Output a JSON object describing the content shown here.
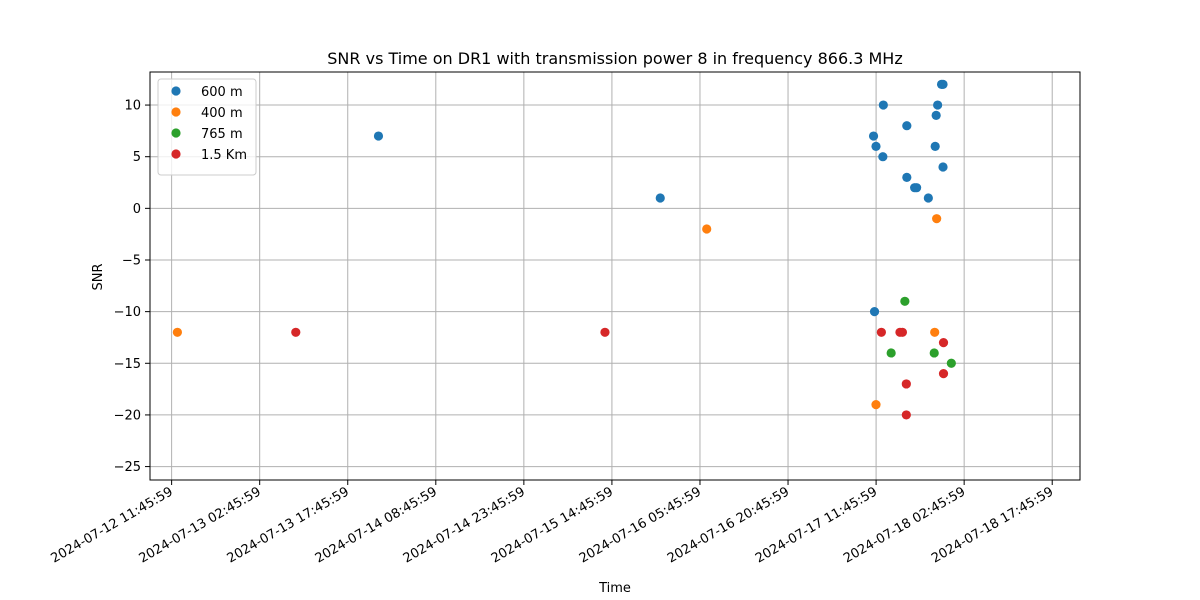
{
  "chart_data": {
    "type": "scatter",
    "title": "SNR vs Time on DR1 with transmission power 8 in frequency 866.3 MHz",
    "xlabel": "Time",
    "ylabel": "SNR",
    "x_ticks": [
      "2024-07-12 11:45:59",
      "2024-07-13 02:45:59",
      "2024-07-13 17:45:59",
      "2024-07-14 08:45:59",
      "2024-07-14 23:45:59",
      "2024-07-15 14:45:59",
      "2024-07-16 05:45:59",
      "2024-07-16 20:45:59",
      "2024-07-17 11:45:59",
      "2024-07-18 02:45:59",
      "2024-07-18 17:45:59"
    ],
    "xlim": [
      "2024-07-12 08:05:00",
      "2024-07-18 22:30:00"
    ],
    "y_ticks": [
      10,
      5,
      0,
      -5,
      -10,
      -15,
      -20,
      -25
    ],
    "ylim": [
      -26.3,
      13.2
    ],
    "grid": true,
    "legend_position": "upper-left",
    "series": [
      {
        "name": "600 m",
        "color": "#1f77b4",
        "points": [
          {
            "x": "2024-07-13 23:00:00",
            "y": 7
          },
          {
            "x": "2024-07-15 23:00:00",
            "y": 1
          },
          {
            "x": "2024-07-17 11:20:00",
            "y": 7
          },
          {
            "x": "2024-07-17 11:30:00",
            "y": -10
          },
          {
            "x": "2024-07-17 11:45:00",
            "y": 6
          },
          {
            "x": "2024-07-17 12:55:00",
            "y": 5
          },
          {
            "x": "2024-07-17 13:00:00",
            "y": 10
          },
          {
            "x": "2024-07-17 17:00:00",
            "y": 8
          },
          {
            "x": "2024-07-17 17:00:00",
            "y": 3
          },
          {
            "x": "2024-07-17 18:20:00",
            "y": 2
          },
          {
            "x": "2024-07-17 18:40:00",
            "y": 2
          },
          {
            "x": "2024-07-17 20:40:00",
            "y": 1
          },
          {
            "x": "2024-07-17 21:50:00",
            "y": 6
          },
          {
            "x": "2024-07-17 22:00:00",
            "y": 9
          },
          {
            "x": "2024-07-17 22:15:00",
            "y": 10
          },
          {
            "x": "2024-07-17 22:55:00",
            "y": 12
          },
          {
            "x": "2024-07-17 23:10:00",
            "y": 12
          },
          {
            "x": "2024-07-17 23:10:00",
            "y": 4
          }
        ]
      },
      {
        "name": "400 m",
        "color": "#ff7f0e",
        "points": [
          {
            "x": "2024-07-12 12:45:00",
            "y": -12
          },
          {
            "x": "2024-07-16 06:55:00",
            "y": -2
          },
          {
            "x": "2024-07-17 11:45:00",
            "y": -19
          },
          {
            "x": "2024-07-17 21:45:00",
            "y": -12
          },
          {
            "x": "2024-07-17 22:05:00",
            "y": -1
          }
        ]
      },
      {
        "name": "765 m",
        "color": "#2ca02c",
        "points": [
          {
            "x": "2024-07-17 14:20:00",
            "y": -14
          },
          {
            "x": "2024-07-17 16:40:00",
            "y": -9
          },
          {
            "x": "2024-07-17 21:40:00",
            "y": -14
          },
          {
            "x": "2024-07-18 00:35:00",
            "y": -15
          }
        ]
      },
      {
        "name": "1.5 Km",
        "color": "#d62728",
        "points": [
          {
            "x": "2024-07-13 08:55:00",
            "y": -12
          },
          {
            "x": "2024-07-15 13:35:00",
            "y": -12
          },
          {
            "x": "2024-07-17 12:40:00",
            "y": -12
          },
          {
            "x": "2024-07-17 15:50:00",
            "y": -12
          },
          {
            "x": "2024-07-17 16:15:00",
            "y": -12
          },
          {
            "x": "2024-07-17 16:55:00",
            "y": -17
          },
          {
            "x": "2024-07-17 16:55:00",
            "y": -20
          },
          {
            "x": "2024-07-17 23:15:00",
            "y": -13
          },
          {
            "x": "2024-07-17 23:15:00",
            "y": -16
          }
        ]
      }
    ]
  }
}
